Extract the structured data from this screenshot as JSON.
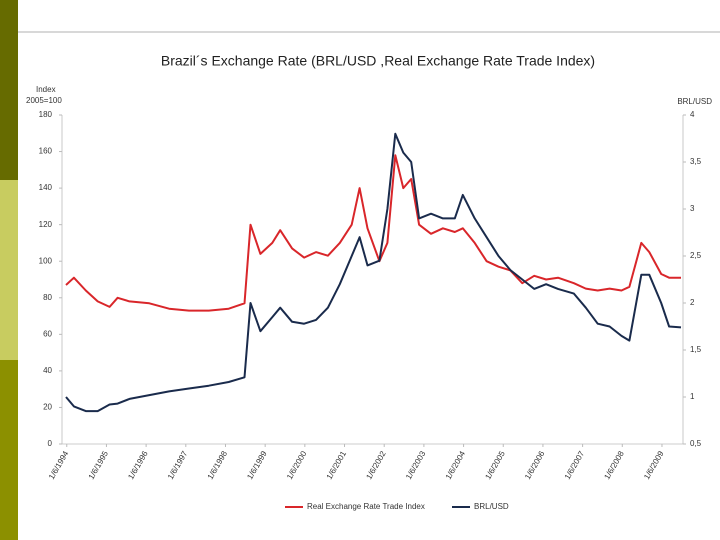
{
  "chart_data": {
    "type": "line",
    "title": "Brazil´s Exchange Rate (BRL/USD ,Real Exchange Rate Trade Index)",
    "ylabel": [
      "Index",
      "2005=100"
    ],
    "y2label": "BRL/USD",
    "x": [
      1994.4,
      1994.6,
      1994.9,
      1995.2,
      1995.5,
      1995.7,
      1996.0,
      1996.5,
      1997.0,
      1997.5,
      1998.0,
      1998.5,
      1998.9,
      1999.05,
      1999.3,
      1999.6,
      1999.8,
      2000.1,
      2000.4,
      2000.7,
      2001.0,
      2001.3,
      2001.6,
      2001.8,
      2002.0,
      2002.3,
      2002.5,
      2002.7,
      2002.9,
      2003.1,
      2003.3,
      2003.6,
      2003.9,
      2004.2,
      2004.4,
      2004.7,
      2005.0,
      2005.3,
      2005.6,
      2005.9,
      2006.2,
      2006.5,
      2006.8,
      2007.2,
      2007.5,
      2007.8,
      2008.1,
      2008.4,
      2008.6,
      2008.9,
      2009.1,
      2009.4,
      2009.6,
      2009.9
    ],
    "series": [
      {
        "name": "Real Exchange Rate Trade Index",
        "color": "#d9262a",
        "values": [
          87,
          91,
          84,
          78,
          75,
          80,
          78,
          77,
          74,
          73,
          73,
          74,
          77,
          120,
          104,
          110,
          117,
          107,
          102,
          105,
          103,
          110,
          120,
          140,
          118,
          100,
          110,
          158,
          140,
          145,
          120,
          115,
          118,
          116,
          118,
          110,
          100,
          97,
          95,
          88,
          92,
          90,
          91,
          88,
          85,
          84,
          85,
          84,
          86,
          110,
          105,
          93,
          91,
          91
        ]
      },
      {
        "name": "BRL/USD",
        "color": "#1a2b4c",
        "axis": "y2",
        "values": [
          1.0,
          0.9,
          0.85,
          0.85,
          0.92,
          0.93,
          0.98,
          1.02,
          1.06,
          1.09,
          1.12,
          1.16,
          1.21,
          2.0,
          1.7,
          1.85,
          1.95,
          1.8,
          1.78,
          1.82,
          1.95,
          2.2,
          2.5,
          2.7,
          2.4,
          2.45,
          3.0,
          3.8,
          3.6,
          3.5,
          2.9,
          2.95,
          2.9,
          2.9,
          3.15,
          2.9,
          2.7,
          2.5,
          2.35,
          2.25,
          2.15,
          2.2,
          2.15,
          2.1,
          1.95,
          1.78,
          1.75,
          1.65,
          1.6,
          2.3,
          2.3,
          2.0,
          1.75,
          1.74
        ]
      }
    ],
    "xlim": [
      1994.3,
      2009.95
    ],
    "xticks": [
      {
        "value": 1994.42,
        "label": "1/6/1994"
      },
      {
        "value": 1995.42,
        "label": "1/6/1995"
      },
      {
        "value": 1996.42,
        "label": "1/6/1996"
      },
      {
        "value": 1997.42,
        "label": "1/6/1997"
      },
      {
        "value": 1998.42,
        "label": "1/6/1998"
      },
      {
        "value": 1999.42,
        "label": "1/6/1999"
      },
      {
        "value": 2000.42,
        "label": "1/6/2000"
      },
      {
        "value": 2001.42,
        "label": "1/6/2001"
      },
      {
        "value": 2002.42,
        "label": "1/6/2002"
      },
      {
        "value": 2003.42,
        "label": "1/6/2003"
      },
      {
        "value": 2004.42,
        "label": "1/6/2004"
      },
      {
        "value": 2005.42,
        "label": "1/6/2005"
      },
      {
        "value": 2006.42,
        "label": "1/6/2006"
      },
      {
        "value": 2007.42,
        "label": "1/6/2007"
      },
      {
        "value": 2008.42,
        "label": "1/6/2008"
      },
      {
        "value": 2009.42,
        "label": "1/6/2009"
      }
    ],
    "ylim": [
      0,
      180
    ],
    "yticks": [
      0,
      20,
      40,
      60,
      80,
      100,
      120,
      140,
      160,
      180
    ],
    "y2lim": [
      0.5,
      4
    ],
    "y2ticks": [
      {
        "value": 0.5,
        "label": "0,5"
      },
      1,
      {
        "value": 1.5,
        "label": "1,5"
      },
      2,
      {
        "value": 2.5,
        "label": "2,5"
      },
      3,
      {
        "value": 3.5,
        "label": "3,5"
      },
      4
    ],
    "legend": "bottom"
  }
}
